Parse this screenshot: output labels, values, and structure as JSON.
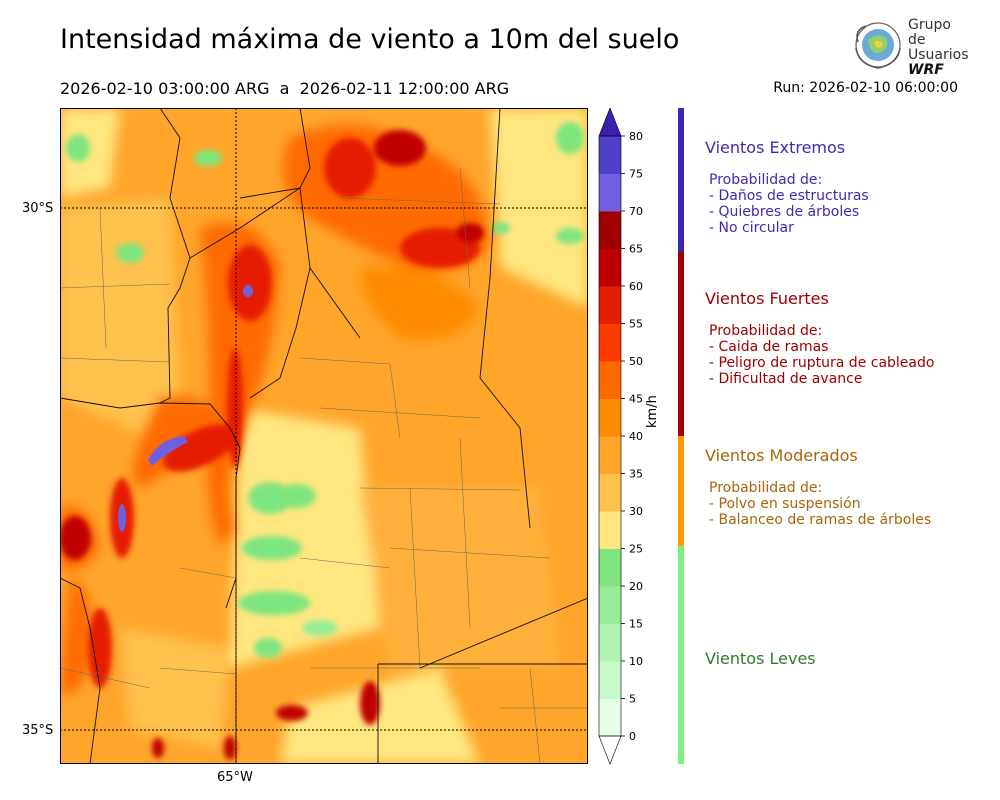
{
  "title": "Intensidad máxima de viento a 10m del suelo",
  "period": "2026-02-10 03:00:00 ARG  a  2026-02-11 12:00:00 ARG",
  "run": "Run: 2026-02-10 06:00:00",
  "logo": {
    "line1": "Grupo de",
    "line2": "Usuarios",
    "line3": "WRF"
  },
  "map": {
    "lat_labels": [
      "30°S",
      "35°S"
    ],
    "lon_labels": [
      "65°W"
    ],
    "extent": {
      "lon": [
        -66.2,
        -61.3
      ],
      "lat": [
        -35.3,
        -29.05
      ]
    }
  },
  "colorbar": {
    "unit": "km/h",
    "ticks": [
      "0",
      "5",
      "10",
      "15",
      "20",
      "25",
      "30",
      "35",
      "40",
      "45",
      "50",
      "55",
      "60",
      "65",
      "70",
      "75",
      "80"
    ],
    "colors": [
      "#e8fde8",
      "#c8f7c8",
      "#b0f2b0",
      "#98ec98",
      "#7ee57e",
      "#ffe680",
      "#ffc24d",
      "#ffa52a",
      "#ff8c00",
      "#ff6a00",
      "#ff3c00",
      "#e61e00",
      "#c00000",
      "#a00000",
      "#7060e0",
      "#5040c8",
      "#3c1fb0"
    ]
  },
  "legend": [
    {
      "title": "Vientos Extremos",
      "color": "#3a2db4",
      "bar": "#3d24b8",
      "intro": "Probabilidad de:",
      "items": [
        "- Daños de estructuras",
        "- Quiebres de árboles",
        "- No circular"
      ]
    },
    {
      "title": "Vientos Fuertes",
      "color": "#9b0000",
      "bar": "#a00000",
      "intro": "Probabilidad de:",
      "items": [
        "- Caida de ramas",
        "- Peligro de ruptura de cableado",
        "- Dificultad de avance"
      ]
    },
    {
      "title": "Vientos Moderados",
      "color": "#a8660a",
      "bar": "#ff9a00",
      "intro": "Probabilidad de:",
      "items": [
        "- Polvo en suspensión",
        "- Balanceo de ramas de árboles"
      ]
    },
    {
      "title": "Vientos Leves",
      "color": "#2e7d2e",
      "bar": "#7cf07c",
      "intro": "",
      "items": []
    }
  ]
}
